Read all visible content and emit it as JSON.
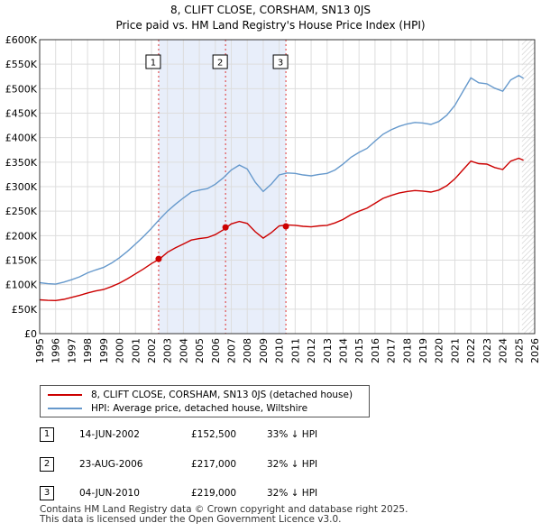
{
  "chart_data": {
    "type": "line",
    "title": "8, CLIFT CLOSE, CORSHAM, SN13 0JS",
    "subtitle": "Price paid vs. HM Land Registry's House Price Index (HPI)",
    "xlabel": "",
    "ylabel": "",
    "xlim": [
      1995,
      2026
    ],
    "ylim": [
      0,
      600000
    ],
    "x_ticks": [
      "1995",
      "1996",
      "1997",
      "1998",
      "1999",
      "2000",
      "2001",
      "2002",
      "2003",
      "2004",
      "2005",
      "2006",
      "2007",
      "2008",
      "2009",
      "2010",
      "2011",
      "2012",
      "2013",
      "2014",
      "2015",
      "2016",
      "2017",
      "2018",
      "2019",
      "2020",
      "2021",
      "2022",
      "2023",
      "2024",
      "2025",
      "2026"
    ],
    "y_ticks": [
      {
        "value": 0,
        "label": "£0"
      },
      {
        "value": 50000,
        "label": "£50K"
      },
      {
        "value": 100000,
        "label": "£100K"
      },
      {
        "value": 150000,
        "label": "£150K"
      },
      {
        "value": 200000,
        "label": "£200K"
      },
      {
        "value": 250000,
        "label": "£250K"
      },
      {
        "value": 300000,
        "label": "£300K"
      },
      {
        "value": 350000,
        "label": "£350K"
      },
      {
        "value": 400000,
        "label": "£400K"
      },
      {
        "value": 450000,
        "label": "£450K"
      },
      {
        "value": 500000,
        "label": "£500K"
      },
      {
        "value": 550000,
        "label": "£550K"
      },
      {
        "value": 600000,
        "label": "£600K"
      }
    ],
    "grid": true,
    "x": [
      1995,
      1995.5,
      1996,
      1996.5,
      1997,
      1997.5,
      1998,
      1998.5,
      1999,
      1999.5,
      2000,
      2000.5,
      2001,
      2001.5,
      2002,
      2002.5,
      2003,
      2003.5,
      2004,
      2004.5,
      2005,
      2005.5,
      2006,
      2006.5,
      2007,
      2007.5,
      2008,
      2008.5,
      2009,
      2009.5,
      2010,
      2010.5,
      2011,
      2011.5,
      2012,
      2012.5,
      2013,
      2013.5,
      2014,
      2014.5,
      2015,
      2015.5,
      2016,
      2016.5,
      2017,
      2017.5,
      2018,
      2018.5,
      2019,
      2019.5,
      2020,
      2020.5,
      2021,
      2021.5,
      2022,
      2022.5,
      2023,
      2023.5,
      2024,
      2024.5,
      2025,
      2025.3
    ],
    "series": [
      {
        "name": "8, CLIFT CLOSE, CORSHAM, SN13 0JS (detached house)",
        "color": "#cc0000",
        "values": [
          69000,
          68000,
          67500,
          70000,
          74000,
          78000,
          83000,
          87000,
          90000,
          96000,
          103000,
          112000,
          122000,
          132000,
          143000,
          152000,
          166000,
          175000,
          183000,
          191000,
          194000,
          196000,
          202000,
          212000,
          224000,
          229000,
          225000,
          208000,
          195000,
          206000,
          220000,
          222000,
          221000,
          219000,
          218000,
          220000,
          221000,
          226000,
          233000,
          243000,
          250000,
          256000,
          266000,
          276000,
          282000,
          287000,
          290000,
          292000,
          291000,
          289000,
          293000,
          302000,
          316000,
          334000,
          352000,
          347000,
          346000,
          339000,
          335000,
          352000,
          358000,
          354000
        ]
      },
      {
        "name": "HPI: Average price, detached house, Wiltshire",
        "color": "#6699cc",
        "values": [
          104000,
          102000,
          101000,
          105000,
          110000,
          116000,
          124000,
          130000,
          135000,
          144000,
          155000,
          168000,
          183000,
          198000,
          215000,
          233000,
          250000,
          264000,
          277000,
          289000,
          293000,
          296000,
          305000,
          318000,
          334000,
          344000,
          336000,
          309000,
          290000,
          305000,
          324000,
          328000,
          327000,
          324000,
          322000,
          325000,
          327000,
          334000,
          346000,
          360000,
          370000,
          378000,
          393000,
          407000,
          416000,
          423000,
          428000,
          431000,
          430000,
          427000,
          433000,
          446000,
          466000,
          494000,
          522000,
          512000,
          510000,
          501000,
          495000,
          518000,
          527000,
          521000
        ]
      }
    ],
    "sale_markers": [
      {
        "label": "1",
        "x": 2002.45,
        "y": 152500
      },
      {
        "label": "2",
        "x": 2006.64,
        "y": 217000
      },
      {
        "label": "3",
        "x": 2010.42,
        "y": 219000
      }
    ],
    "legend_position": "below"
  },
  "legend": {
    "property_label": "8, CLIFT CLOSE, CORSHAM, SN13 0JS (detached house)",
    "hpi_label": "HPI: Average price, detached house, Wiltshire"
  },
  "sales": [
    {
      "num": "1",
      "date": "14-JUN-2002",
      "price": "£152,500",
      "delta": "33% ↓ HPI"
    },
    {
      "num": "2",
      "date": "23-AUG-2006",
      "price": "£217,000",
      "delta": "32% ↓ HPI"
    },
    {
      "num": "3",
      "date": "04-JUN-2010",
      "price": "£219,000",
      "delta": "32% ↓ HPI"
    }
  ],
  "footer": {
    "line1": "Contains HM Land Registry data © Crown copyright and database right 2025.",
    "line2": "This data is licensed under the Open Government Licence v3.0."
  },
  "colors": {
    "property": "#cc0000",
    "hpi": "#6699cc",
    "shade": "#e8eefa",
    "hatch": "#cccccc",
    "grid": "#dddddd"
  }
}
